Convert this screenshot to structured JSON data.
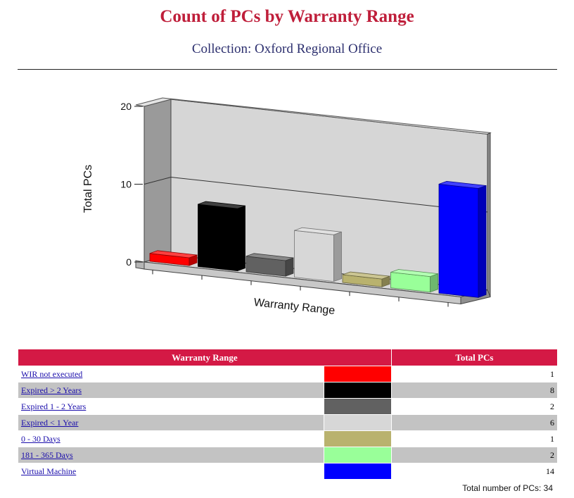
{
  "header": {
    "title": "Count of PCs by Warranty Range",
    "subtitle": "Collection: Oxford Regional Office"
  },
  "chart_data": {
    "type": "bar",
    "title": "",
    "xlabel": "Warranty Range",
    "ylabel": "Total PCs",
    "ylim": [
      0,
      20
    ],
    "yticks": [
      "0",
      "10",
      "20"
    ],
    "categories": [
      "WIR not executed",
      "Expired > 2 Years",
      "Expired 1 - 2 Years",
      "Expired < 1 Year",
      "0 - 30 Days",
      "181 - 365 Days",
      "Virtual Machine"
    ],
    "values": [
      1,
      8,
      2,
      6,
      1,
      2,
      14
    ],
    "colors": [
      "#ff0000",
      "#000000",
      "#616161",
      "#d7d7d7",
      "#b9b26e",
      "#99ff99",
      "#0000ff"
    ],
    "grid": true,
    "style": "3d"
  },
  "table": {
    "headers": [
      "Warranty Range",
      "Total PCs"
    ],
    "rows": [
      {
        "name": "WIR not executed",
        "color": "#ff0000",
        "value": "1"
      },
      {
        "name": "Expired > 2 Years",
        "color": "#000000",
        "value": "8"
      },
      {
        "name": "Expired 1 - 2 Years",
        "color": "#616161",
        "value": "2"
      },
      {
        "name": "Expired < 1 Year",
        "color": "#d7d7d7",
        "value": "6"
      },
      {
        "name": "0 - 30 Days",
        "color": "#b9b26e",
        "value": "1"
      },
      {
        "name": "181 - 365 Days",
        "color": "#99ff99",
        "value": "2"
      },
      {
        "name": "Virtual Machine",
        "color": "#0000ff",
        "value": "14"
      }
    ]
  },
  "footer": {
    "total_label": "Total number of PCs: 34"
  }
}
